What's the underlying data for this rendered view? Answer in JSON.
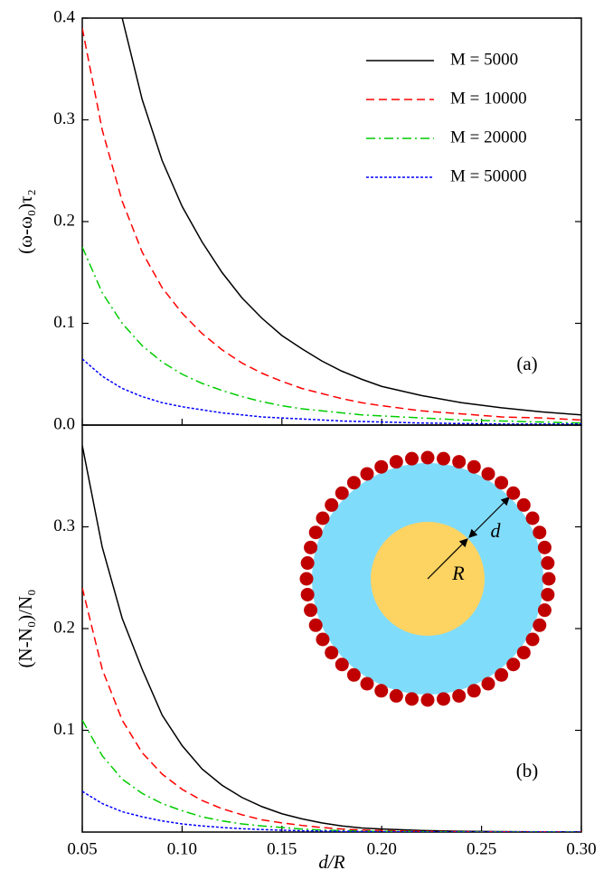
{
  "chart_data": [
    {
      "type": "line",
      "ylabel": "(ω-ω₀)τ₂",
      "annotations": [
        "(a)"
      ],
      "legend": "upper right",
      "x": [
        0.05,
        0.06,
        0.07,
        0.08,
        0.09,
        0.1,
        0.11,
        0.12,
        0.13,
        0.14,
        0.15,
        0.16,
        0.17,
        0.18,
        0.19,
        0.2,
        0.22,
        0.24,
        0.26,
        0.28,
        0.3
      ],
      "xlim": [
        0.05,
        0.3
      ],
      "ylim": [
        0,
        0.4
      ],
      "yticks": [
        {
          "value": 0,
          "label": "0.0"
        },
        0.1,
        0.2,
        0.3,
        0.4
      ],
      "series": [
        {
          "name": "M = 5000",
          "color": "#000000",
          "dash": "solid",
          "values": [
            null,
            null,
            0.4,
            0.32,
            0.26,
            0.215,
            0.18,
            0.15,
            0.125,
            0.105,
            0.088,
            0.075,
            0.063,
            0.053,
            0.045,
            0.038,
            0.029,
            0.022,
            0.017,
            0.013,
            0.01
          ]
        },
        {
          "name": "M = 10000",
          "color": "#ff0000",
          "dash": "dashed",
          "values": [
            0.39,
            0.29,
            0.22,
            0.17,
            0.135,
            0.11,
            0.09,
            0.074,
            0.061,
            0.051,
            0.043,
            0.036,
            0.031,
            0.026,
            0.022,
            0.019,
            0.014,
            0.011,
            0.008,
            0.007,
            0.005
          ]
        },
        {
          "name": "M = 20000",
          "color": "#00cc00",
          "dash": "dashdot",
          "values": [
            0.175,
            0.13,
            0.1,
            0.078,
            0.062,
            0.05,
            0.041,
            0.034,
            0.028,
            0.023,
            0.019,
            0.016,
            0.014,
            0.012,
            0.01,
            0.009,
            0.007,
            0.005,
            0.004,
            0.003,
            0.002
          ]
        },
        {
          "name": "M = 50000",
          "color": "#0000ff",
          "dash": "dotted",
          "values": [
            0.065,
            0.048,
            0.036,
            0.028,
            0.022,
            0.018,
            0.015,
            0.012,
            0.01,
            0.008,
            0.007,
            0.006,
            0.005,
            0.004,
            0.0035,
            0.003,
            0.002,
            0.0015,
            0.001,
            0.001,
            0.001
          ]
        }
      ]
    },
    {
      "type": "line",
      "ylabel": "(N-N₀)/N₀",
      "xlabel": "d/R",
      "annotations": [
        "(b)",
        "R",
        "d"
      ],
      "x": [
        0.05,
        0.06,
        0.07,
        0.08,
        0.09,
        0.1,
        0.11,
        0.12,
        0.13,
        0.14,
        0.15,
        0.16,
        0.17,
        0.18,
        0.19,
        0.2,
        0.22,
        0.24,
        0.26,
        0.28,
        0.3
      ],
      "xlim": [
        0.05,
        0.3
      ],
      "ylim": [
        0,
        0.4
      ],
      "xticks": [
        0.05,
        {
          "value": 0.1,
          "label": "0.10"
        },
        0.15,
        {
          "value": 0.2,
          "label": "0.20"
        },
        0.25,
        {
          "value": 0.3,
          "label": "0.30"
        }
      ],
      "yticks": [
        0.1,
        0.2,
        0.3
      ],
      "series": [
        {
          "color": "#000000",
          "dash": "solid",
          "values": [
            0.38,
            0.28,
            0.21,
            0.16,
            0.115,
            0.085,
            0.062,
            0.046,
            0.034,
            0.025,
            0.018,
            0.013,
            0.009,
            0.006,
            0.004,
            0.003,
            0.0015,
            0.0008,
            0.0004,
            0.0002,
            0.0001
          ]
        },
        {
          "color": "#ff0000",
          "dash": "dashed",
          "values": [
            0.24,
            0.16,
            0.11,
            0.078,
            0.057,
            0.042,
            0.031,
            0.023,
            0.017,
            0.012,
            0.009,
            0.0065,
            0.0045,
            0.003,
            0.002,
            0.0015,
            0.0007,
            0.0003,
            0.0002,
            0.0001,
            0
          ]
        },
        {
          "color": "#00cc00",
          "dash": "dashdot",
          "values": [
            0.11,
            0.075,
            0.052,
            0.038,
            0.028,
            0.021,
            0.015,
            0.011,
            0.008,
            0.006,
            0.0045,
            0.003,
            0.002,
            0.0015,
            0.001,
            0.0007,
            0.0003,
            0.0001,
            0,
            0,
            0
          ]
        },
        {
          "color": "#0000ff",
          "dash": "dotted",
          "values": [
            0.04,
            0.028,
            0.02,
            0.015,
            0.011,
            0.008,
            0.006,
            0.0045,
            0.0033,
            0.0025,
            0.0018,
            0.0013,
            0.001,
            0.0007,
            0.0005,
            0.0003,
            0.0001,
            0,
            0,
            0,
            0
          ]
        }
      ]
    }
  ]
}
